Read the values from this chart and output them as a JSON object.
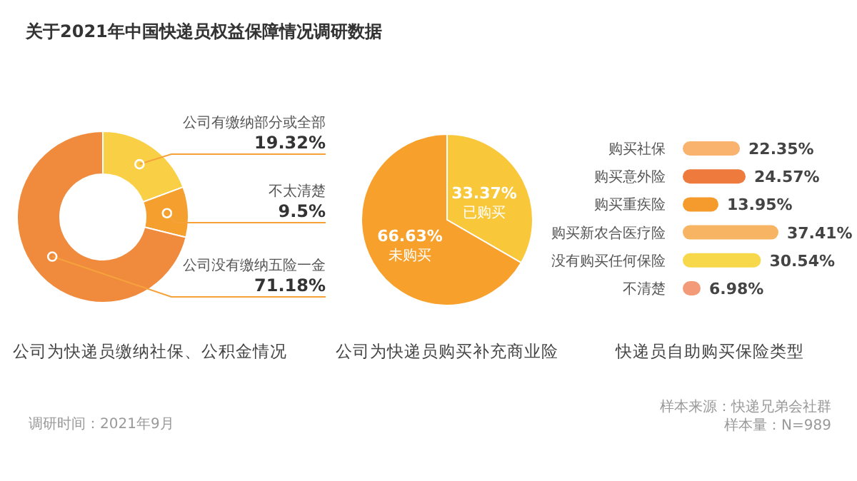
{
  "chart_data": [
    {
      "type": "other",
      "title": "关于2021年中国快递员权益保障情况调研数据",
      "annotations": [
        "调研时间：2021年9月",
        "样本来源：快递兄弟会社群",
        "样本量：N=989"
      ]
    },
    {
      "type": "donut",
      "title": "公司为快递员缴纳社保、公积金情况",
      "categories": [
        "公司有缴纳部分或全部",
        "不太清楚",
        "公司没有缴纳五险一金"
      ],
      "values": [
        19.32,
        9.5,
        71.18
      ],
      "colors": [
        "#f9cf45",
        "#f5a02e",
        "#f08b3e"
      ],
      "value_labels": [
        "19.32%",
        "9.5%",
        "71.18%"
      ]
    },
    {
      "type": "pie",
      "title": "公司为快递员购买补充商业险",
      "categories": [
        "已购买",
        "未购买"
      ],
      "values": [
        33.37,
        66.63
      ],
      "colors": [
        "#f8c83a",
        "#f7a12c"
      ],
      "value_labels": [
        "33.37%",
        "66.63%"
      ]
    },
    {
      "type": "bar",
      "orientation": "horizontal",
      "title": "快递员自助购买保险类型",
      "categories": [
        "购买社保",
        "购买意外险",
        "购买重疾险",
        "购买新农合医疗险",
        "没有购买任何保险",
        "不清楚"
      ],
      "values": [
        22.35,
        24.57,
        13.95,
        37.41,
        30.54,
        6.98
      ],
      "colors": [
        "#f9b36f",
        "#ee7a3e",
        "#f59a2c",
        "#f7b563",
        "#f7d84a",
        "#f39a78"
      ],
      "value_labels": [
        "22.35%",
        "24.57%",
        "13.95%",
        "37.41%",
        "30.54%",
        "6.98%"
      ]
    }
  ]
}
